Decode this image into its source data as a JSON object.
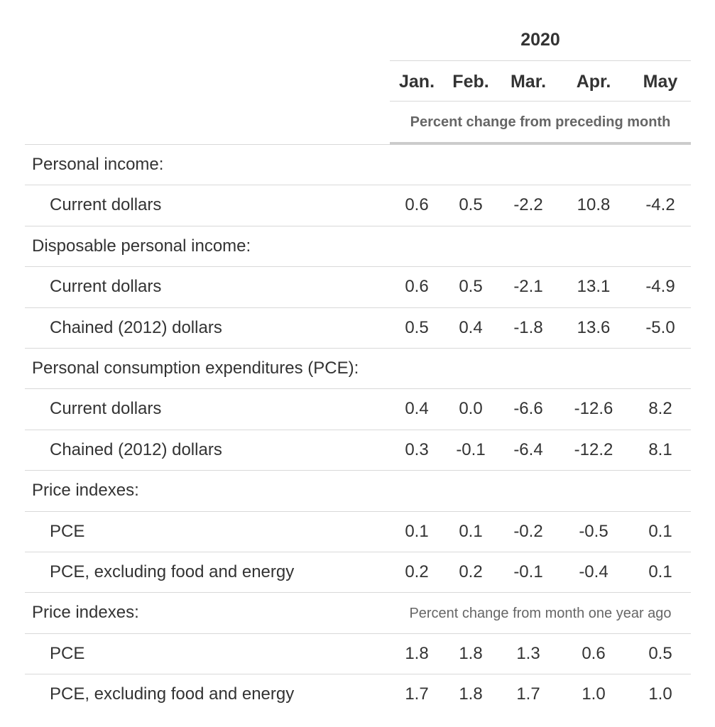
{
  "chart_data": {
    "type": "table",
    "header": {
      "year": "2020",
      "months": [
        "Jan.",
        "Feb.",
        "Mar.",
        "Apr.",
        "May"
      ],
      "subheader": "Percent change from preceding month"
    },
    "rows": [
      {
        "label": "Personal income:",
        "indent": false,
        "values": []
      },
      {
        "label": "Current dollars",
        "indent": true,
        "values": [
          "0.6",
          "0.5",
          "-2.2",
          "10.8",
          "-4.2"
        ]
      },
      {
        "label": "Disposable personal income:",
        "indent": false,
        "values": []
      },
      {
        "label": "Current dollars",
        "indent": true,
        "values": [
          "0.6",
          "0.5",
          "-2.1",
          "13.1",
          "-4.9"
        ]
      },
      {
        "label": "Chained (2012) dollars",
        "indent": true,
        "values": [
          "0.5",
          "0.4",
          "-1.8",
          "13.6",
          "-5.0"
        ]
      },
      {
        "label": "Personal consumption expenditures (PCE):",
        "indent": false,
        "values": []
      },
      {
        "label": "Current dollars",
        "indent": true,
        "values": [
          "0.4",
          "0.0",
          "-6.6",
          "-12.6",
          "8.2"
        ]
      },
      {
        "label": "Chained (2012) dollars",
        "indent": true,
        "values": [
          "0.3",
          "-0.1",
          "-6.4",
          "-12.2",
          "8.1"
        ]
      },
      {
        "label": "Price indexes:",
        "indent": false,
        "values": []
      },
      {
        "label": "PCE",
        "indent": true,
        "values": [
          "0.1",
          "0.1",
          "-0.2",
          "-0.5",
          "0.1"
        ]
      },
      {
        "label": "PCE, excluding food and energy",
        "indent": true,
        "values": [
          "0.2",
          "0.2",
          "-0.1",
          "-0.4",
          "0.1"
        ]
      },
      {
        "label": "Price indexes:",
        "indent": false,
        "values": [],
        "note": "Percent change from month one year ago"
      },
      {
        "label": "PCE",
        "indent": true,
        "values": [
          "1.8",
          "1.8",
          "1.3",
          "0.6",
          "0.5"
        ]
      },
      {
        "label": "PCE, excluding food and energy",
        "indent": true,
        "values": [
          "1.7",
          "1.8",
          "1.7",
          "1.0",
          "1.0"
        ]
      }
    ]
  }
}
